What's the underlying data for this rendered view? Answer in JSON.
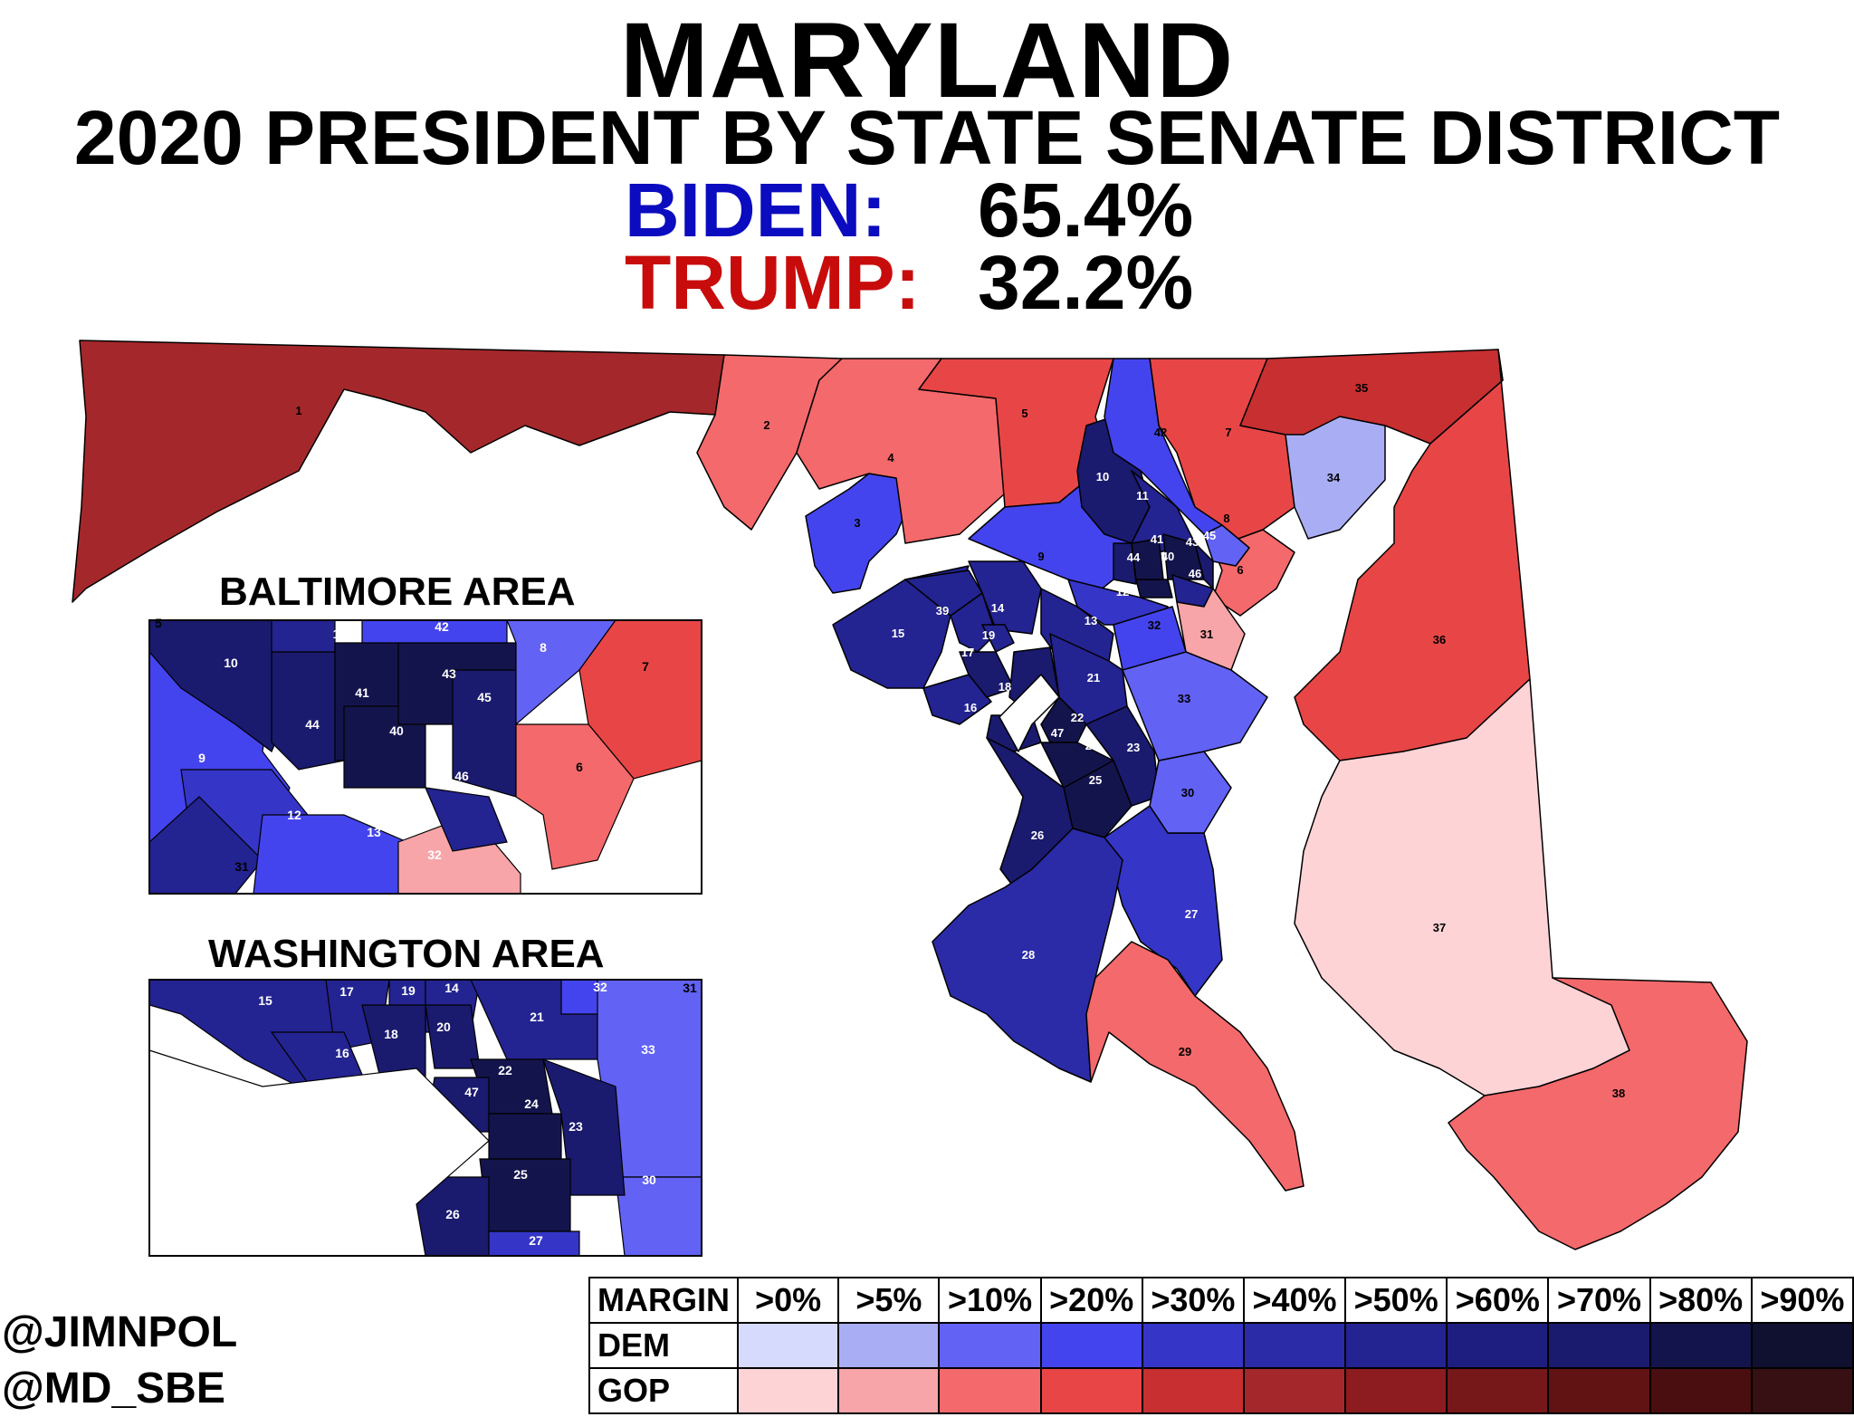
{
  "title": "MARYLAND",
  "subtitle": "2020 PRESIDENT BY STATE SENATE DISTRICT",
  "results": [
    {
      "candidate": "BIDEN:",
      "pct": "65.4%",
      "color": "#0b0bbf"
    },
    {
      "candidate": "TRUMP:",
      "pct": "32.2%",
      "color": "#c80c0c"
    }
  ],
  "insets": {
    "baltimore": {
      "title": "BALTIMORE AREA",
      "labels": [
        "5",
        "11",
        "42",
        "8",
        "7",
        "10",
        "41",
        "43",
        "45",
        "44",
        "40",
        "9",
        "46",
        "6",
        "12",
        "31",
        "13",
        "32"
      ]
    },
    "washington": {
      "title": "WASHINGTON AREA",
      "labels": [
        "15",
        "17",
        "19",
        "14",
        "32",
        "31",
        "21",
        "16",
        "18",
        "20",
        "33",
        "22",
        "47",
        "24",
        "23",
        "25",
        "30",
        "26",
        "27"
      ]
    }
  },
  "districts": [
    {
      "id": "1",
      "party": "GOP",
      "color": "#a4282b"
    },
    {
      "id": "2",
      "party": "GOP",
      "color": "#f4696b"
    },
    {
      "id": "3",
      "party": "DEM",
      "color": "#4444ee"
    },
    {
      "id": "4",
      "party": "GOP",
      "color": "#f4696b"
    },
    {
      "id": "5",
      "party": "GOP",
      "color": "#e84646"
    },
    {
      "id": "6",
      "party": "GOP",
      "color": "#f4696b"
    },
    {
      "id": "7",
      "party": "GOP",
      "color": "#e84646"
    },
    {
      "id": "8",
      "party": "DEM",
      "color": "#6262f5"
    },
    {
      "id": "9",
      "party": "DEM",
      "color": "#4444ee"
    },
    {
      "id": "10",
      "party": "DEM",
      "color": "#1a1a6e"
    },
    {
      "id": "11",
      "party": "DEM",
      "color": "#232391"
    },
    {
      "id": "12",
      "party": "DEM",
      "color": "#3535c8"
    },
    {
      "id": "13",
      "party": "DEM",
      "color": "#232391"
    },
    {
      "id": "14",
      "party": "DEM",
      "color": "#232391"
    },
    {
      "id": "15",
      "party": "DEM",
      "color": "#232391"
    },
    {
      "id": "16",
      "party": "DEM",
      "color": "#232391"
    },
    {
      "id": "17",
      "party": "DEM",
      "color": "#232391"
    },
    {
      "id": "18",
      "party": "DEM",
      "color": "#1a1a6e"
    },
    {
      "id": "19",
      "party": "DEM",
      "color": "#232391"
    },
    {
      "id": "20",
      "party": "DEM",
      "color": "#1a1a6e"
    },
    {
      "id": "21",
      "party": "DEM",
      "color": "#232391"
    },
    {
      "id": "22",
      "party": "DEM",
      "color": "#14144d"
    },
    {
      "id": "23",
      "party": "DEM",
      "color": "#1a1a6e"
    },
    {
      "id": "24",
      "party": "DEM",
      "color": "#14144d"
    },
    {
      "id": "25",
      "party": "DEM",
      "color": "#14144d"
    },
    {
      "id": "26",
      "party": "DEM",
      "color": "#1a1a6e"
    },
    {
      "id": "27",
      "party": "DEM",
      "color": "#3535c8"
    },
    {
      "id": "28",
      "party": "DEM",
      "color": "#2b2ba8"
    },
    {
      "id": "29",
      "party": "GOP",
      "color": "#f4696b"
    },
    {
      "id": "30",
      "party": "DEM",
      "color": "#6262f5"
    },
    {
      "id": "31",
      "party": "GOP",
      "color": "#f7a5a8"
    },
    {
      "id": "32",
      "party": "DEM",
      "color": "#4444ee"
    },
    {
      "id": "33",
      "party": "DEM",
      "color": "#6262f5"
    },
    {
      "id": "34",
      "party": "DEM",
      "color": "#a9aef4"
    },
    {
      "id": "35",
      "party": "GOP",
      "color": "#c72f31"
    },
    {
      "id": "36",
      "party": "GOP",
      "color": "#e84646"
    },
    {
      "id": "37",
      "party": "GOP",
      "color": "#fdd3d6"
    },
    {
      "id": "38",
      "party": "GOP",
      "color": "#f4696b"
    },
    {
      "id": "39",
      "party": "DEM",
      "color": "#232391"
    },
    {
      "id": "40",
      "party": "DEM",
      "color": "#14144d"
    },
    {
      "id": "41",
      "party": "DEM",
      "color": "#14144d"
    },
    {
      "id": "42",
      "party": "DEM",
      "color": "#4444ee"
    },
    {
      "id": "43",
      "party": "DEM",
      "color": "#14144d"
    },
    {
      "id": "44",
      "party": "DEM",
      "color": "#1a1a6e"
    },
    {
      "id": "45",
      "party": "DEM",
      "color": "#1a1a6e"
    },
    {
      "id": "46",
      "party": "DEM",
      "color": "#232391"
    },
    {
      "id": "47",
      "party": "DEM",
      "color": "#1a1a6e"
    }
  ],
  "legend": {
    "header": "MARGIN",
    "bins": [
      ">0%",
      ">5%",
      ">10%",
      ">20%",
      ">30%",
      ">40%",
      ">50%",
      ">60%",
      ">70%",
      ">80%",
      ">90%"
    ],
    "rows": [
      {
        "label": "DEM",
        "colors": [
          "#d6dafc",
          "#a9aef4",
          "#6262f5",
          "#4444ee",
          "#3535c8",
          "#2b2ba8",
          "#232391",
          "#1e1e80",
          "#1a1a6e",
          "#14144d",
          "#101030"
        ]
      },
      {
        "label": "GOP",
        "colors": [
          "#fdd3d6",
          "#f7a5a8",
          "#f4696b",
          "#e84646",
          "#c72f31",
          "#a4282b",
          "#8c1c1f",
          "#761719",
          "#611314",
          "#4a0e10",
          "#361012"
        ]
      }
    ]
  },
  "credits": [
    "@JIMNPOL",
    "@MD_SBE"
  ]
}
